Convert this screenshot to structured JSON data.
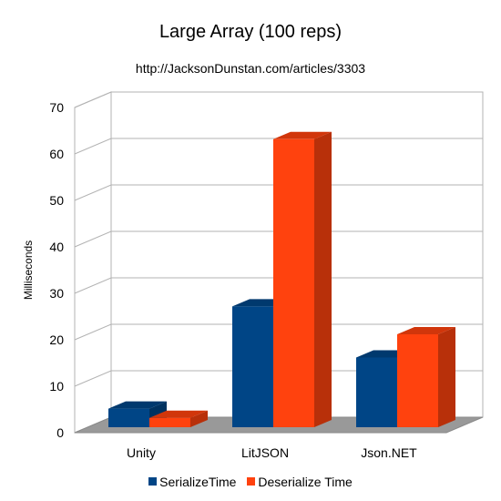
{
  "chart_data": {
    "type": "bar",
    "title": "Large Array (100 reps)",
    "subtitle": "http://JacksonDunstan.com/articles/3303",
    "ylabel": "Milliseconds",
    "xlabel": "",
    "ylim": [
      0,
      70
    ],
    "yticks": [
      "0",
      "10",
      "20",
      "30",
      "40",
      "50",
      "60",
      "70"
    ],
    "grid": true,
    "three_d": true,
    "legend_position": "bottom",
    "categories": [
      "Unity",
      "LitJSON",
      "Json.NET"
    ],
    "series": [
      {
        "name": "SerializeTime",
        "values": [
          4,
          26,
          15
        ],
        "color": "#004586"
      },
      {
        "name": "Deserialize Time",
        "values": [
          2,
          62,
          20
        ],
        "color": "#ff420e"
      }
    ]
  }
}
